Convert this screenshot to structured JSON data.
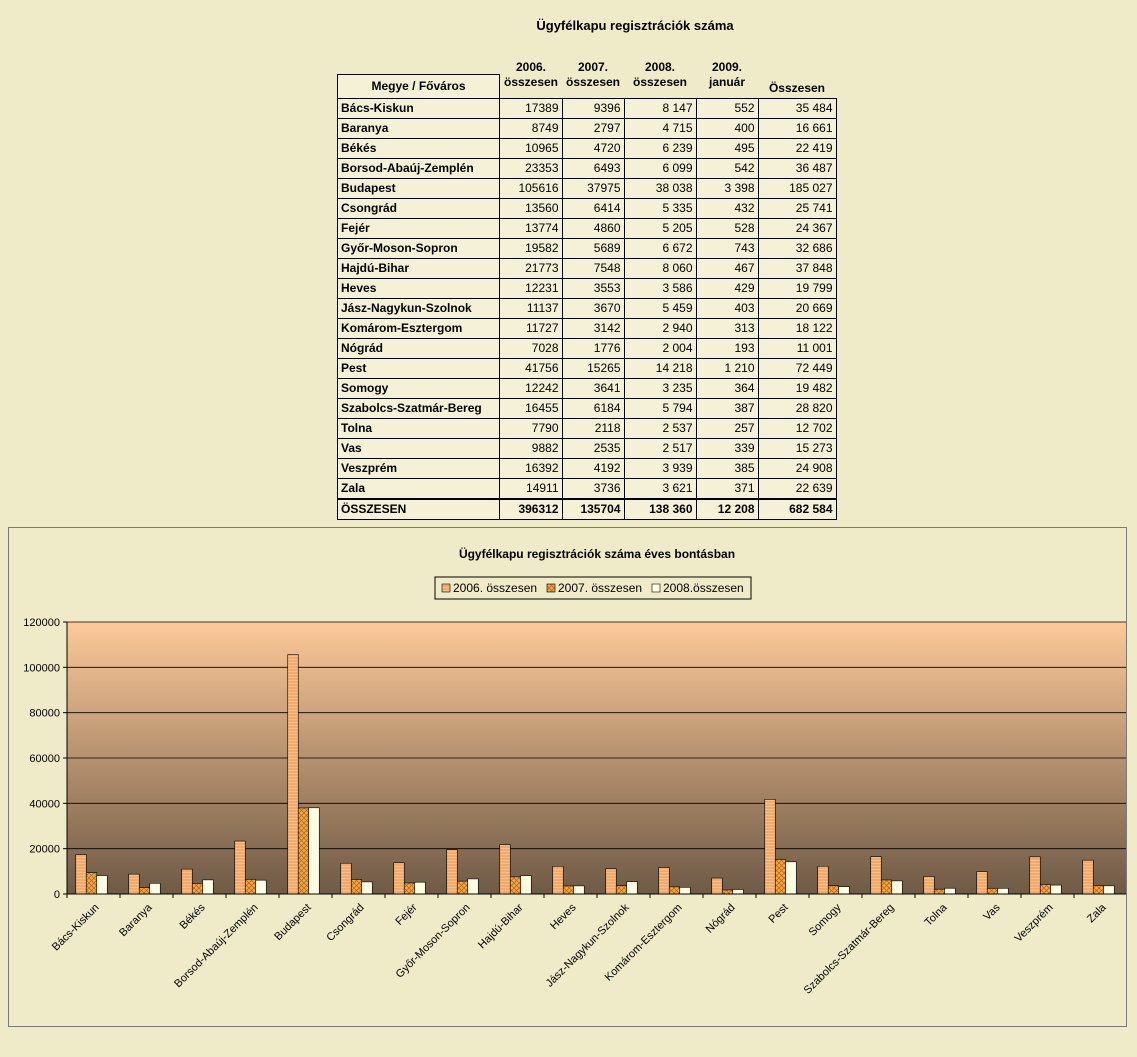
{
  "table": {
    "title": "Ügyfélkapu regisztrációk száma",
    "headers": {
      "county": "Megye / Főváros",
      "y2006": [
        "2006.",
        "összesen"
      ],
      "y2007": [
        "2007.",
        "összesen"
      ],
      "y2008": [
        "2008.",
        "összesen"
      ],
      "y2009": [
        "2009.",
        "január"
      ],
      "total": "Összesen"
    },
    "rows": [
      {
        "name": "Bács-Kiskun",
        "c2006": "17389",
        "c2007": "9396",
        "c2008": "8 147",
        "c2009": "552",
        "total": "35 484"
      },
      {
        "name": "Baranya",
        "c2006": "8749",
        "c2007": "2797",
        "c2008": "4 715",
        "c2009": "400",
        "total": "16 661"
      },
      {
        "name": "Békés",
        "c2006": "10965",
        "c2007": "4720",
        "c2008": "6 239",
        "c2009": "495",
        "total": "22 419"
      },
      {
        "name": "Borsod-Abaúj-Zemplén",
        "c2006": "23353",
        "c2007": "6493",
        "c2008": "6 099",
        "c2009": "542",
        "total": "36 487"
      },
      {
        "name": "Budapest",
        "c2006": "105616",
        "c2007": "37975",
        "c2008": "38 038",
        "c2009": "3 398",
        "total": "185 027"
      },
      {
        "name": "Csongrád",
        "c2006": "13560",
        "c2007": "6414",
        "c2008": "5 335",
        "c2009": "432",
        "total": "25 741"
      },
      {
        "name": "Fejér",
        "c2006": "13774",
        "c2007": "4860",
        "c2008": "5 205",
        "c2009": "528",
        "total": "24 367"
      },
      {
        "name": "Győr-Moson-Sopron",
        "c2006": "19582",
        "c2007": "5689",
        "c2008": "6 672",
        "c2009": "743",
        "total": "32 686"
      },
      {
        "name": "Hajdú-Bihar",
        "c2006": "21773",
        "c2007": "7548",
        "c2008": "8 060",
        "c2009": "467",
        "total": "37 848"
      },
      {
        "name": "Heves",
        "c2006": "12231",
        "c2007": "3553",
        "c2008": "3 586",
        "c2009": "429",
        "total": "19 799"
      },
      {
        "name": "Jász-Nagykun-Szolnok",
        "c2006": "11137",
        "c2007": "3670",
        "c2008": "5 459",
        "c2009": "403",
        "total": "20 669"
      },
      {
        "name": "Komárom-Esztergom",
        "c2006": "11727",
        "c2007": "3142",
        "c2008": "2 940",
        "c2009": "313",
        "total": "18 122"
      },
      {
        "name": "Nógrád",
        "c2006": "7028",
        "c2007": "1776",
        "c2008": "2 004",
        "c2009": "193",
        "total": "11 001"
      },
      {
        "name": "Pest",
        "c2006": "41756",
        "c2007": "15265",
        "c2008": "14 218",
        "c2009": "1 210",
        "total": "72 449"
      },
      {
        "name": "Somogy",
        "c2006": "12242",
        "c2007": "3641",
        "c2008": "3 235",
        "c2009": "364",
        "total": "19 482"
      },
      {
        "name": "Szabolcs-Szatmár-Bereg",
        "c2006": "16455",
        "c2007": "6184",
        "c2008": "5 794",
        "c2009": "387",
        "total": "28 820"
      },
      {
        "name": "Tolna",
        "c2006": "7790",
        "c2007": "2118",
        "c2008": "2 537",
        "c2009": "257",
        "total": "12 702"
      },
      {
        "name": "Vas",
        "c2006": "9882",
        "c2007": "2535",
        "c2008": "2 517",
        "c2009": "339",
        "total": "15 273"
      },
      {
        "name": "Veszprém",
        "c2006": "16392",
        "c2007": "4192",
        "c2008": "3 939",
        "c2009": "385",
        "total": "24 908"
      },
      {
        "name": "Zala",
        "c2006": "14911",
        "c2007": "3736",
        "c2008": "3 621",
        "c2009": "371",
        "total": "22 639"
      }
    ],
    "total_row": {
      "name": "ÖSSZESEN",
      "c2006": "396312",
      "c2007": "135704",
      "c2008": "138 360",
      "c2009": "12 208",
      "total": "682 584"
    }
  },
  "chart_data": {
    "type": "bar",
    "title": "Ügyfélkapu regisztrációk száma éves bontásban",
    "categories": [
      "Bács-Kiskun",
      "Baranya",
      "Békés",
      "Borsod-Abaúj-Zemplén",
      "Budapest",
      "Csongrád",
      "Fejér",
      "Győr-Moson-Sopron",
      "Hajdú-Bihar",
      "Heves",
      "Jász-Nagykun-Szolnok",
      "Komárom-Esztergom",
      "Nógrád",
      "Pest",
      "Somogy",
      "Szabolcs-Szatmár-Bereg",
      "Tolna",
      "Vas",
      "Veszprém",
      "Zala"
    ],
    "series": [
      {
        "name": "2006. összesen",
        "color": "#fbbf86",
        "values": [
          17389,
          8749,
          10965,
          23353,
          105616,
          13560,
          13774,
          19582,
          21773,
          12231,
          11137,
          11727,
          7028,
          41756,
          12242,
          16455,
          7790,
          9882,
          16392,
          14911
        ]
      },
      {
        "name": "2007. összesen",
        "color": "#f5a848",
        "values": [
          9396,
          2797,
          4720,
          6493,
          37975,
          6414,
          4860,
          5689,
          7548,
          3553,
          3670,
          3142,
          1776,
          15265,
          3641,
          6184,
          2118,
          2535,
          4192,
          3736
        ]
      },
      {
        "name": "2008.összesen",
        "color": "#fffde4",
        "values": [
          8147,
          4715,
          6239,
          6099,
          38038,
          5335,
          5205,
          6672,
          8060,
          3586,
          5459,
          2940,
          2004,
          14218,
          3235,
          5794,
          2537,
          2517,
          3939,
          3621
        ]
      }
    ],
    "ylim": [
      0,
      120000
    ],
    "yticks": [
      "0",
      "20000",
      "40000",
      "60000",
      "80000",
      "100000",
      "120000"
    ],
    "legend_position": "top",
    "grid": true,
    "plot_gradient": [
      "#fdc998",
      "#6e5a46"
    ]
  }
}
